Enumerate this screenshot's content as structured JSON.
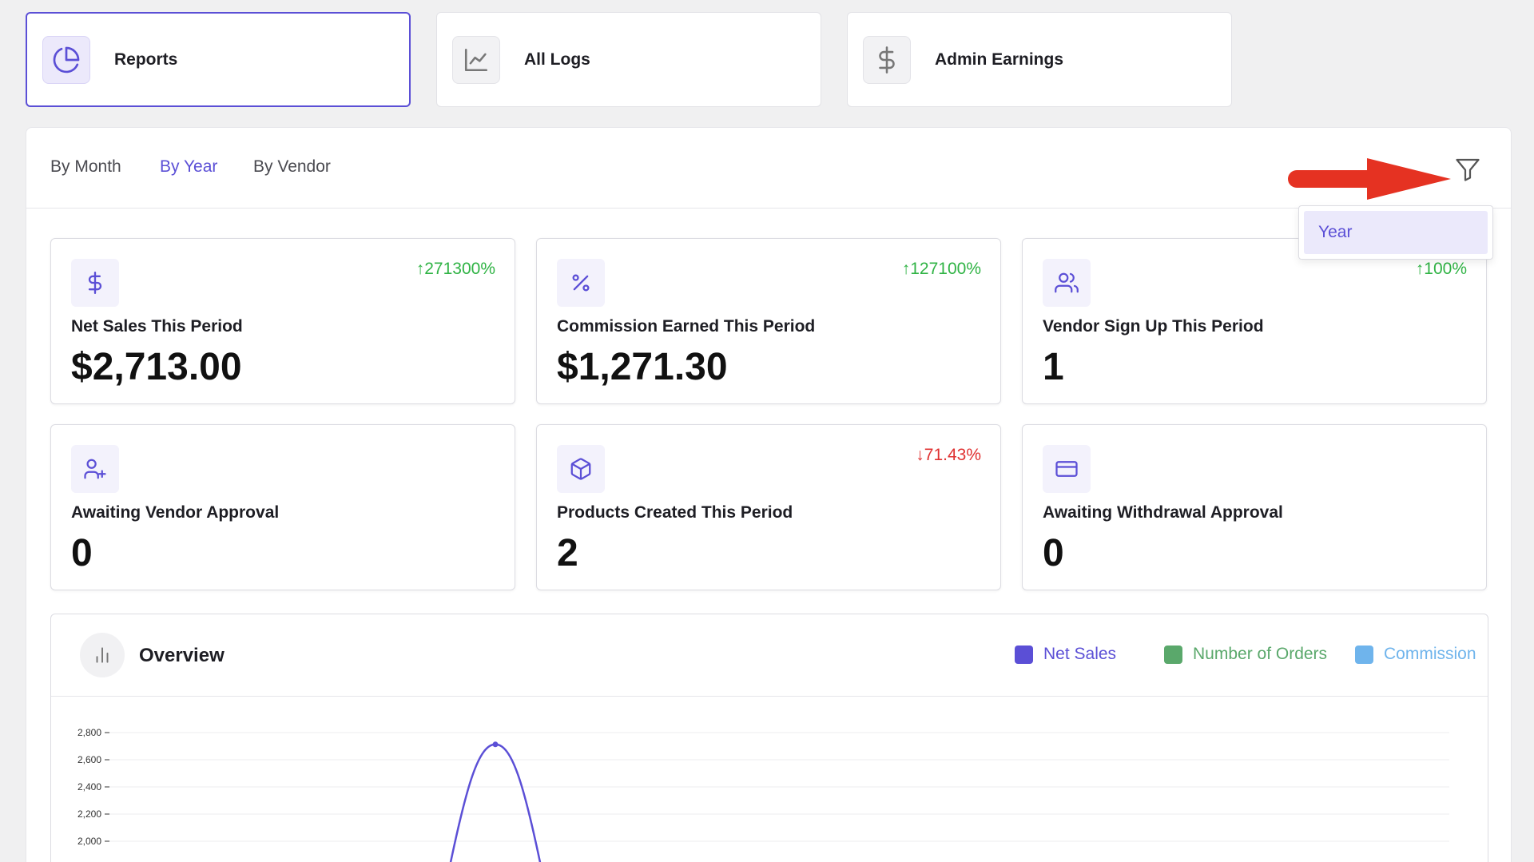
{
  "nav": {
    "items": [
      {
        "label": "Reports",
        "icon": "pie-chart-icon",
        "active": true
      },
      {
        "label": "All Logs",
        "icon": "line-chart-icon",
        "active": false
      },
      {
        "label": "Admin Earnings",
        "icon": "dollar-icon",
        "active": false
      }
    ]
  },
  "tabs": {
    "by_month": "By Month",
    "by_year": "By Year",
    "by_vendor": "By Vendor",
    "active": "By Year"
  },
  "filter": {
    "icon": "filter-icon",
    "dropdown_option": "Year"
  },
  "stats": [
    {
      "label": "Net Sales This Period",
      "value": "$2,713.00",
      "change": "271300%",
      "direction": "up",
      "icon": "dollar-icon"
    },
    {
      "label": "Commission Earned This Period",
      "value": "$1,271.30",
      "change": "127100%",
      "direction": "up",
      "icon": "percent-icon"
    },
    {
      "label": "Vendor Sign Up This Period",
      "value": "1",
      "change": "100%",
      "direction": "up",
      "icon": "users-icon"
    },
    {
      "label": "Awaiting Vendor Approval",
      "value": "0",
      "change": "",
      "direction": "",
      "icon": "user-plus-icon"
    },
    {
      "label": "Products Created This Period",
      "value": "2",
      "change": "71.43%",
      "direction": "down",
      "icon": "box-icon"
    },
    {
      "label": "Awaiting Withdrawal Approval",
      "value": "0",
      "change": "",
      "direction": "",
      "icon": "credit-card-icon"
    }
  ],
  "overview": {
    "title": "Overview",
    "legend": [
      {
        "label": "Net Sales",
        "color": "#5b4fd6"
      },
      {
        "label": "Number of Orders",
        "color": "#5aa86b"
      },
      {
        "label": "Commission",
        "color": "#6fb4ec"
      }
    ]
  },
  "colors": {
    "accent": "#5b4fd6",
    "up": "#2fb344",
    "down": "#e03131",
    "annotation_arrow": "#e53222"
  },
  "chart_data": {
    "type": "line",
    "y_ticks": [
      "2,800",
      "2,600",
      "2,400",
      "2,200",
      "2,000"
    ],
    "ylim": [
      2000,
      2800
    ],
    "series": [
      {
        "name": "Net Sales",
        "peak_value": 2713
      }
    ]
  }
}
